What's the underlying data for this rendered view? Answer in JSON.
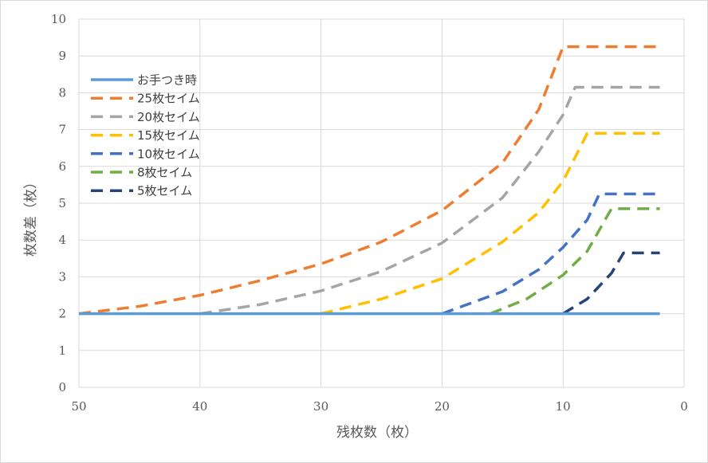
{
  "chart_data": {
    "type": "line",
    "title": "",
    "xlabel": "残枚数（枚）",
    "ylabel": "枚数差（枚）",
    "x_reversed": true,
    "xlim": [
      50,
      0
    ],
    "ylim": [
      0,
      10
    ],
    "x_ticks": [
      "50",
      "40",
      "30",
      "20",
      "10",
      "0"
    ],
    "y_ticks": [
      "0",
      "1",
      "2",
      "3",
      "4",
      "5",
      "6",
      "7",
      "8",
      "9",
      "10"
    ],
    "grid": true,
    "legend_position": "left",
    "series": [
      {
        "name": "お手つき時",
        "color": "#5b9bd5",
        "dashed": false,
        "points": [
          [
            50,
            2
          ],
          [
            2,
            2
          ]
        ]
      },
      {
        "name": "25枚セイム",
        "color": "#ed7d31",
        "dashed": true,
        "points": [
          [
            50,
            2.0
          ],
          [
            45,
            2.2
          ],
          [
            40,
            2.5
          ],
          [
            35,
            2.9
          ],
          [
            30,
            3.35
          ],
          [
            25,
            3.95
          ],
          [
            20,
            4.8
          ],
          [
            15,
            6.1
          ],
          [
            12,
            7.55
          ],
          [
            10,
            9.25
          ],
          [
            2,
            9.25
          ]
        ]
      },
      {
        "name": "20枚セイム",
        "color": "#a5a5a5",
        "dashed": true,
        "points": [
          [
            40,
            2.0
          ],
          [
            35,
            2.25
          ],
          [
            30,
            2.62
          ],
          [
            25,
            3.15
          ],
          [
            20,
            3.92
          ],
          [
            15,
            5.15
          ],
          [
            12,
            6.4
          ],
          [
            10,
            7.4
          ],
          [
            9,
            8.15
          ],
          [
            2,
            8.15
          ]
        ]
      },
      {
        "name": "15枚セイム",
        "color": "#ffc000",
        "dashed": true,
        "points": [
          [
            30,
            2.0
          ],
          [
            25,
            2.4
          ],
          [
            20,
            2.95
          ],
          [
            15,
            3.95
          ],
          [
            12,
            4.75
          ],
          [
            10,
            5.6
          ],
          [
            8,
            6.9
          ],
          [
            2,
            6.9
          ]
        ]
      },
      {
        "name": "10枚セイム",
        "color": "#4472c4",
        "dashed": true,
        "points": [
          [
            20,
            2.0
          ],
          [
            15,
            2.6
          ],
          [
            12,
            3.2
          ],
          [
            10,
            3.8
          ],
          [
            8,
            4.55
          ],
          [
            7,
            5.25
          ],
          [
            2,
            5.25
          ]
        ]
      },
      {
        "name": "8枚セイム",
        "color": "#70ad47",
        "dashed": true,
        "points": [
          [
            16,
            2.0
          ],
          [
            13,
            2.4
          ],
          [
            10,
            3.05
          ],
          [
            8,
            3.7
          ],
          [
            6,
            4.85
          ],
          [
            2,
            4.85
          ]
        ]
      },
      {
        "name": "5枚セイム",
        "color": "#264478",
        "dashed": true,
        "points": [
          [
            10,
            2.0
          ],
          [
            8,
            2.4
          ],
          [
            6,
            3.1
          ],
          [
            5,
            3.65
          ],
          [
            2,
            3.65
          ]
        ]
      }
    ]
  }
}
